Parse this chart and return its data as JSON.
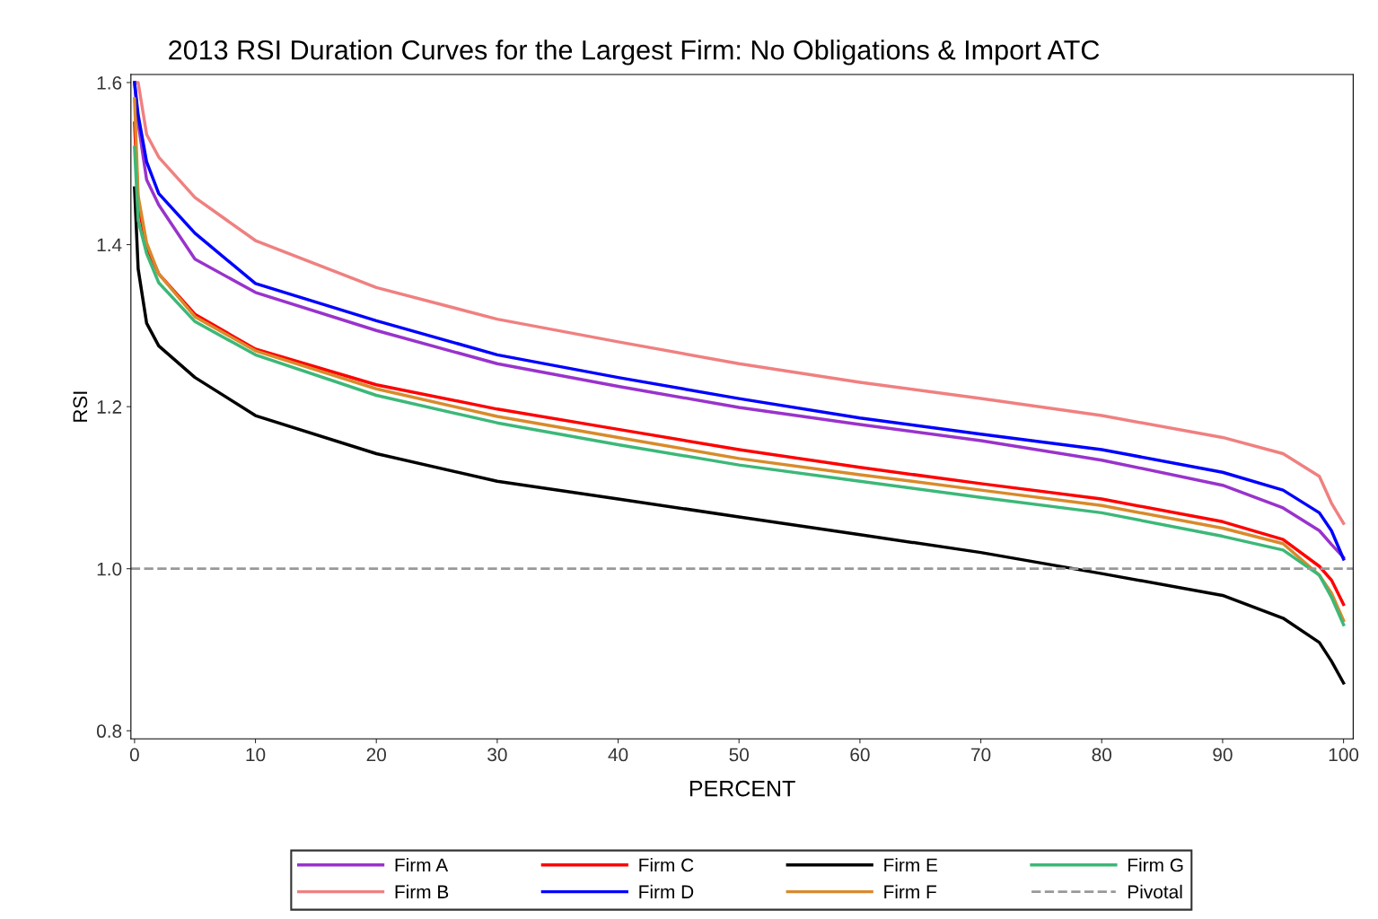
{
  "chart_data": {
    "type": "line",
    "title": "2013 RSI Duration Curves for the Largest Firm: No Obligations & Import ATC",
    "xlabel": "PERCENT",
    "ylabel": "RSI",
    "x": [
      0,
      0.3,
      1,
      2,
      5,
      10,
      20,
      30,
      40,
      50,
      60,
      70,
      80,
      90,
      95,
      98,
      99,
      100
    ],
    "series": [
      {
        "name": "Firm A",
        "color": "#9933cc",
        "values": [
          1.6,
          1.55,
          1.48,
          1.449,
          1.382,
          1.341,
          1.294,
          1.253,
          1.225,
          1.199,
          1.178,
          1.158,
          1.134,
          1.103,
          1.075,
          1.047,
          1.03,
          1.014
        ]
      },
      {
        "name": "Firm B",
        "color": "#f08080",
        "values": [
          1.6,
          1.6,
          1.536,
          1.508,
          1.458,
          1.405,
          1.347,
          1.308,
          1.28,
          1.253,
          1.23,
          1.21,
          1.189,
          1.162,
          1.142,
          1.114,
          1.081,
          1.056
        ]
      },
      {
        "name": "Firm C",
        "color": "#ff0000",
        "values": [
          1.55,
          1.45,
          1.397,
          1.364,
          1.314,
          1.271,
          1.227,
          1.197,
          1.172,
          1.147,
          1.125,
          1.105,
          1.086,
          1.058,
          1.036,
          1.003,
          0.986,
          0.956
        ]
      },
      {
        "name": "Firm D",
        "color": "#0000ff",
        "values": [
          1.6,
          1.56,
          1.502,
          1.463,
          1.414,
          1.352,
          1.306,
          1.264,
          1.236,
          1.21,
          1.186,
          1.166,
          1.147,
          1.119,
          1.097,
          1.069,
          1.047,
          1.012
        ]
      },
      {
        "name": "Firm E",
        "color": "#000000",
        "values": [
          1.47,
          1.37,
          1.303,
          1.275,
          1.236,
          1.189,
          1.142,
          1.108,
          1.086,
          1.064,
          1.042,
          1.02,
          0.994,
          0.967,
          0.939,
          0.909,
          0.886,
          0.859
        ]
      },
      {
        "name": "Firm F",
        "color": "#d98a2b",
        "values": [
          1.58,
          1.46,
          1.402,
          1.364,
          1.311,
          1.269,
          1.222,
          1.188,
          1.162,
          1.136,
          1.116,
          1.097,
          1.078,
          1.05,
          1.031,
          0.992,
          0.97,
          0.936
        ]
      },
      {
        "name": "Firm G",
        "color": "#3cb878",
        "values": [
          1.52,
          1.43,
          1.389,
          1.353,
          1.305,
          1.264,
          1.214,
          1.18,
          1.153,
          1.128,
          1.108,
          1.088,
          1.069,
          1.04,
          1.023,
          0.992,
          0.965,
          0.931
        ]
      }
    ],
    "ref_lines": [
      {
        "axis": "y",
        "value": 1.0,
        "label": "Pivotal",
        "color": "#999999",
        "line_style": "dashed"
      }
    ],
    "xlim": [
      -0.3,
      100.8
    ],
    "xticks": [
      0,
      10,
      20,
      30,
      40,
      50,
      60,
      70,
      80,
      90,
      100
    ],
    "ylim": [
      0.79,
      1.61
    ],
    "yticks": [
      {
        "value": 0.8,
        "label": "0.8"
      },
      {
        "value": 1.0,
        "label": "1.0"
      },
      {
        "value": 1.2,
        "label": "1.2"
      },
      {
        "value": 1.4,
        "label": "1.4"
      },
      {
        "value": 1.6,
        "label": "1.6"
      }
    ],
    "grid": false,
    "legend": "bottom",
    "marker": "none",
    "line_style": "solid"
  }
}
